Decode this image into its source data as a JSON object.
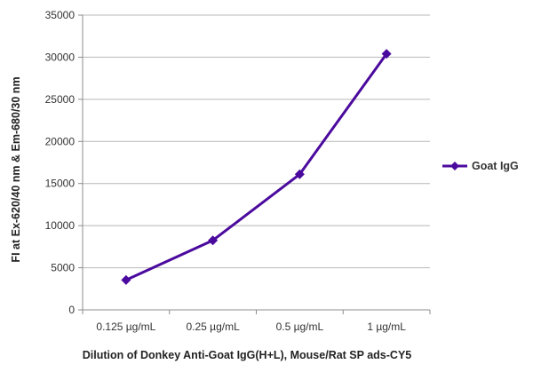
{
  "chart_data": {
    "type": "line",
    "title": "",
    "xlabel": "Dilution of Donkey Anti-Goat IgG(H+L), Mouse/Rat SP ads-CY5",
    "ylabel": "FI at Ex-620/40 nm & Em-680/30 nm",
    "categories": [
      "0.125 µg/mL",
      "0.25 µg/mL",
      "0.5 µg/mL",
      "1 µg/mL"
    ],
    "yticks": [
      "0",
      "5000",
      "10000",
      "15000",
      "20000",
      "25000",
      "30000",
      "35000"
    ],
    "ylim": [
      0,
      35000
    ],
    "grid": true,
    "legend_position": "right",
    "series": [
      {
        "name": "Goat IgG",
        "values": [
          3550,
          8250,
          16100,
          30400
        ],
        "color": "#4b0a9e",
        "marker": "diamond"
      }
    ]
  }
}
